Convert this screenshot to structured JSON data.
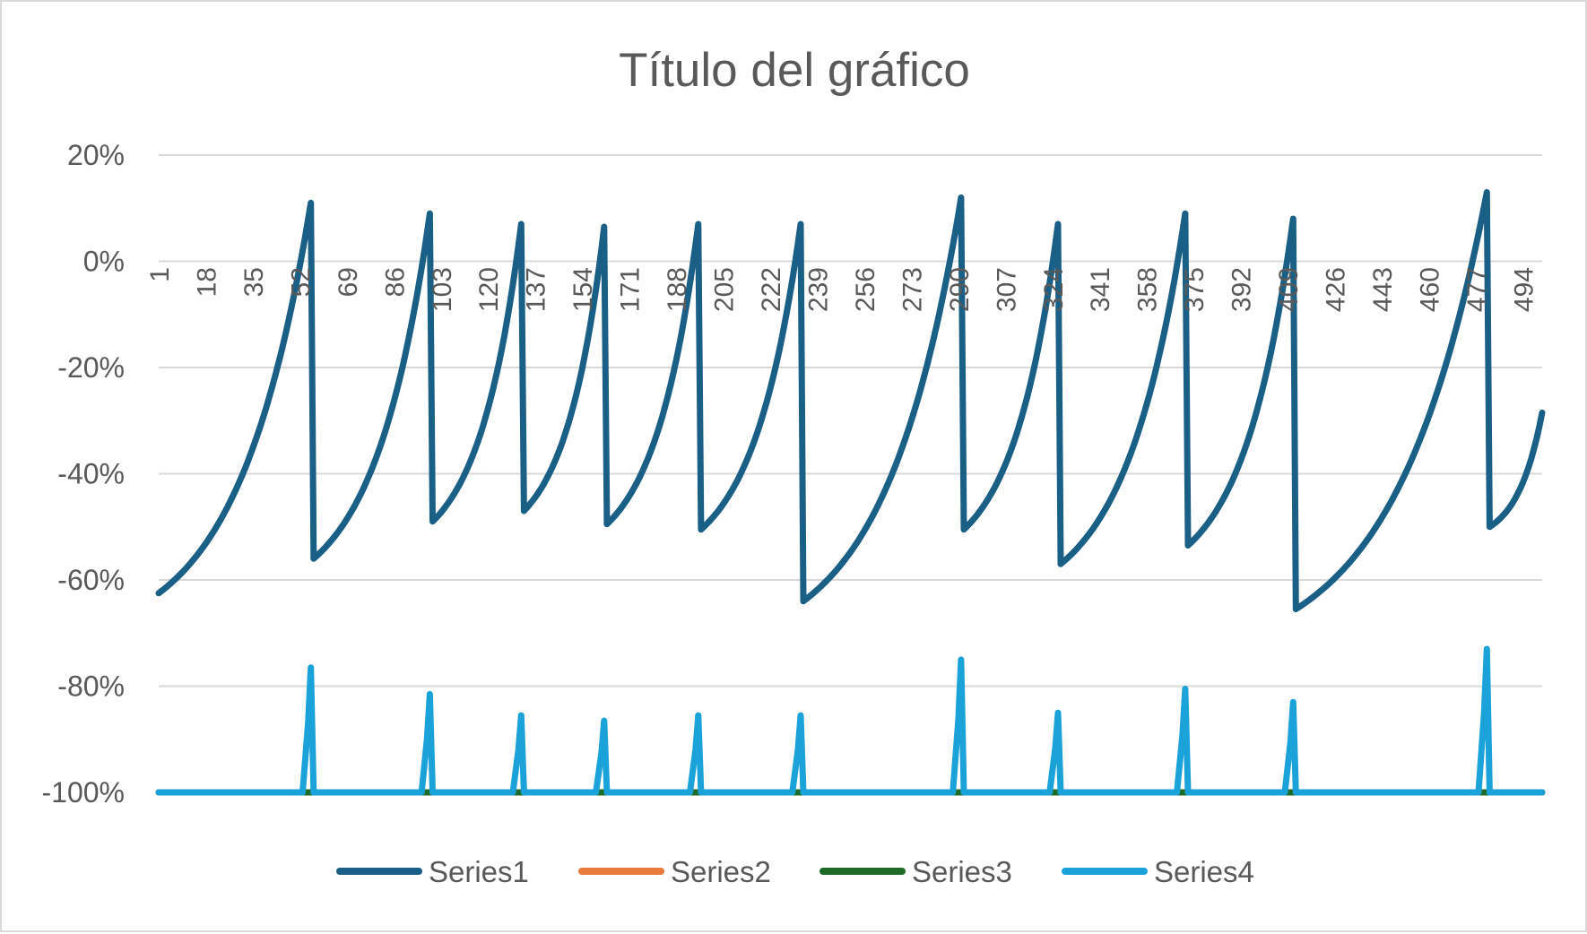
{
  "chart_data": {
    "type": "line",
    "title": "Título del gráfico",
    "xlabel": "",
    "ylabel": "",
    "x_range": [
      1,
      501
    ],
    "x_tick_labels": [
      "1",
      "18",
      "35",
      "52",
      "69",
      "86",
      "103",
      "120",
      "137",
      "154",
      "171",
      "188",
      "205",
      "222",
      "239",
      "256",
      "273",
      "290",
      "307",
      "324",
      "341",
      "358",
      "375",
      "392",
      "409",
      "426",
      "443",
      "460",
      "477",
      "494"
    ],
    "y_tick_labels": [
      "20%",
      "0%",
      "-20%",
      "-40%",
      "-60%",
      "-80%",
      "-100%"
    ],
    "ylim": [
      -1.0,
      0.2
    ],
    "grid": true,
    "legend_position": "bottom",
    "series": [
      {
        "name": "Series1",
        "color": "#1a5f86",
        "segments": [
          {
            "start": 1,
            "end": 56,
            "start_value": -0.625,
            "end_value": 0.11
          },
          {
            "start": 57,
            "end": 99,
            "start_value": -0.56,
            "end_value": 0.09
          },
          {
            "start": 100,
            "end": 132,
            "start_value": -0.49,
            "end_value": 0.07
          },
          {
            "start": 133,
            "end": 162,
            "start_value": -0.47,
            "end_value": 0.065
          },
          {
            "start": 163,
            "end": 196,
            "start_value": -0.495,
            "end_value": 0.07
          },
          {
            "start": 197,
            "end": 233,
            "start_value": -0.505,
            "end_value": 0.07
          },
          {
            "start": 234,
            "end": 291,
            "start_value": -0.64,
            "end_value": 0.12
          },
          {
            "start": 292,
            "end": 326,
            "start_value": -0.505,
            "end_value": 0.07
          },
          {
            "start": 327,
            "end": 372,
            "start_value": -0.57,
            "end_value": 0.09
          },
          {
            "start": 373,
            "end": 411,
            "start_value": -0.535,
            "end_value": 0.08
          },
          {
            "start": 412,
            "end": 481,
            "start_value": -0.655,
            "end_value": 0.13
          },
          {
            "start": 482,
            "end": 501,
            "start_value": -0.5,
            "end_value": -0.285
          }
        ]
      },
      {
        "name": "Series2",
        "color": "#e97b3b",
        "values_note": "",
        "baseline": -1.0,
        "segments": [
          {
            "start": 1,
            "end": 501,
            "start_value": -1.0,
            "end_value": -1.0
          }
        ]
      },
      {
        "name": "Series3",
        "color": "#1e6b28",
        "baseline": -1.0,
        "segments": [
          {
            "start": 1,
            "end": 501,
            "start_value": -1.0,
            "end_value": -1.0
          }
        ]
      },
      {
        "name": "Series4",
        "color": "#1ba2d8",
        "baseline": -1.0,
        "spikes": [
          {
            "x": 56,
            "value": -0.765
          },
          {
            "x": 99,
            "value": -0.815
          },
          {
            "x": 132,
            "value": -0.855
          },
          {
            "x": 162,
            "value": -0.865
          },
          {
            "x": 196,
            "value": -0.855
          },
          {
            "x": 233,
            "value": -0.855
          },
          {
            "x": 291,
            "value": -0.75
          },
          {
            "x": 326,
            "value": -0.85
          },
          {
            "x": 372,
            "value": -0.805
          },
          {
            "x": 411,
            "value": -0.83
          },
          {
            "x": 481,
            "value": -0.73
          }
        ]
      }
    ]
  }
}
